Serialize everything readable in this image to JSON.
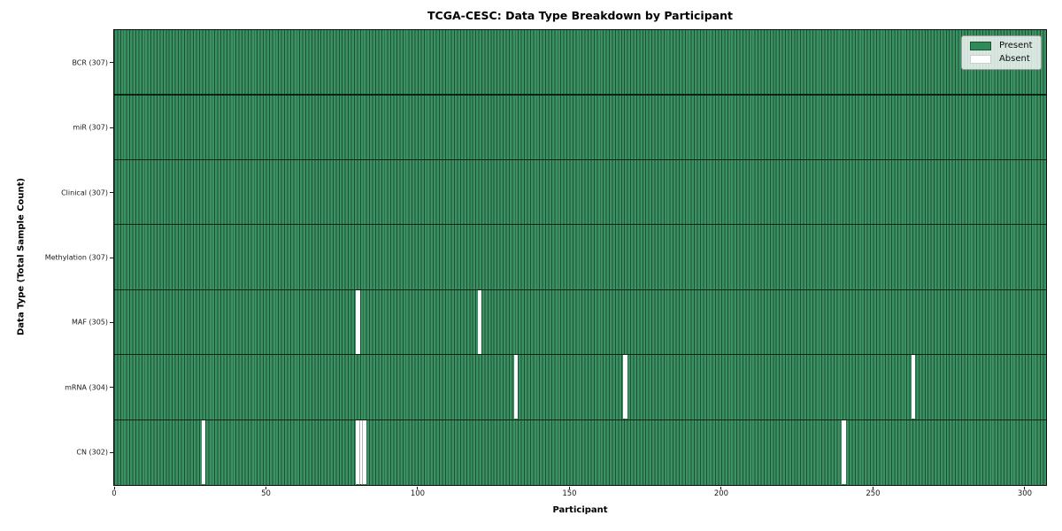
{
  "figure": {
    "title": "TCGA-CESC: Data Type Breakdown by Participant",
    "xlabel": "Participant",
    "ylabel": "Data Type (Total Sample Count)"
  },
  "chart_data": {
    "type": "heatmap",
    "title": "TCGA-CESC: Data Type Breakdown by Participant",
    "xlabel": "Participant",
    "ylabel": "Data Type (Total Sample Count)",
    "n_participants": 307,
    "x_range": [
      0,
      307
    ],
    "x_ticks": [
      0,
      50,
      100,
      150,
      200,
      250,
      300
    ],
    "grid": false,
    "legend_position": "upper right",
    "legend_items": [
      {
        "label": "Present",
        "color": "#2e8b57"
      },
      {
        "label": "Absent",
        "color": "#ffffff"
      }
    ],
    "colors": {
      "present": "#3a9263",
      "present_edge": "#1e4f34",
      "absent": "#ffffff",
      "row_separator": "#0b1b11",
      "plot_border": "#0d0d0d"
    },
    "rows": [
      {
        "label": "BCR (307)",
        "data_type": "BCR",
        "count": 307,
        "absent_participants": []
      },
      {
        "label": "miR (307)",
        "data_type": "miR",
        "count": 307,
        "absent_participants": []
      },
      {
        "label": "Clinical (307)",
        "data_type": "Clinical",
        "count": 307,
        "absent_participants": []
      },
      {
        "label": "Methylation (307)",
        "data_type": "Methylation",
        "count": 307,
        "absent_participants": []
      },
      {
        "label": "MAF (305)",
        "data_type": "MAF",
        "count": 305,
        "absent_participants": [
          80,
          120
        ]
      },
      {
        "label": "mRNA (304)",
        "data_type": "mRNA",
        "count": 304,
        "absent_participants": [
          132,
          168,
          263
        ]
      },
      {
        "label": "CN (302)",
        "data_type": "CN",
        "count": 302,
        "absent_participants": [
          29,
          80,
          81,
          82,
          240
        ]
      }
    ]
  }
}
